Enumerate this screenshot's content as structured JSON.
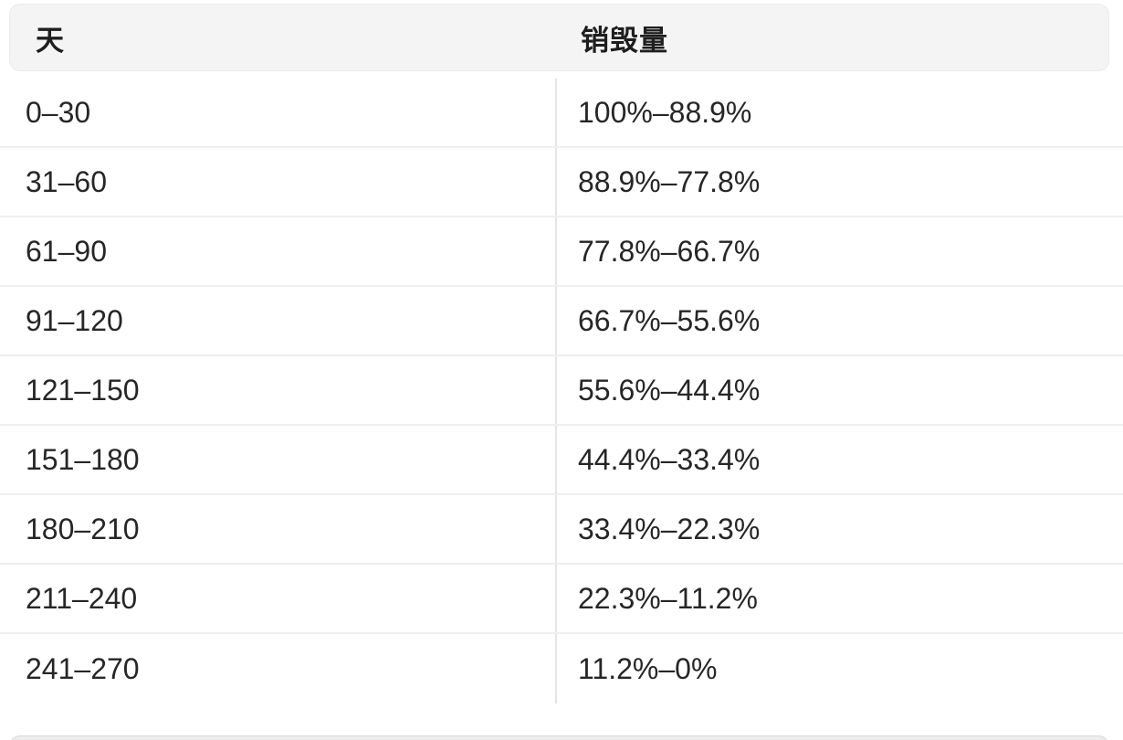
{
  "table": {
    "columns": [
      {
        "label": "天"
      },
      {
        "label": "销毁量"
      }
    ],
    "rows": [
      {
        "day": "0–30",
        "burn": "100%–88.9%"
      },
      {
        "day": "31–60",
        "burn": "88.9%–77.8%"
      },
      {
        "day": "61–90",
        "burn": "77.8%–66.7%"
      },
      {
        "day": "91–120",
        "burn": "66.7%–55.6%"
      },
      {
        "day": "121–150",
        "burn": "55.6%–44.4%"
      },
      {
        "day": "151–180",
        "burn": "44.4%–33.4%"
      },
      {
        "day": "180–210",
        "burn": "33.4%–22.3%"
      },
      {
        "day": "211–240",
        "burn": "22.3%–11.2%"
      },
      {
        "day": "241–270",
        "burn": "11.2%–0%"
      }
    ]
  },
  "colors": {
    "header_background": "#f4f4f5",
    "header_border": "#ebebeb",
    "row_divider": "#efefef",
    "column_divider": "#e5e5e5",
    "text": "#262626",
    "page_background": "#ffffff"
  }
}
